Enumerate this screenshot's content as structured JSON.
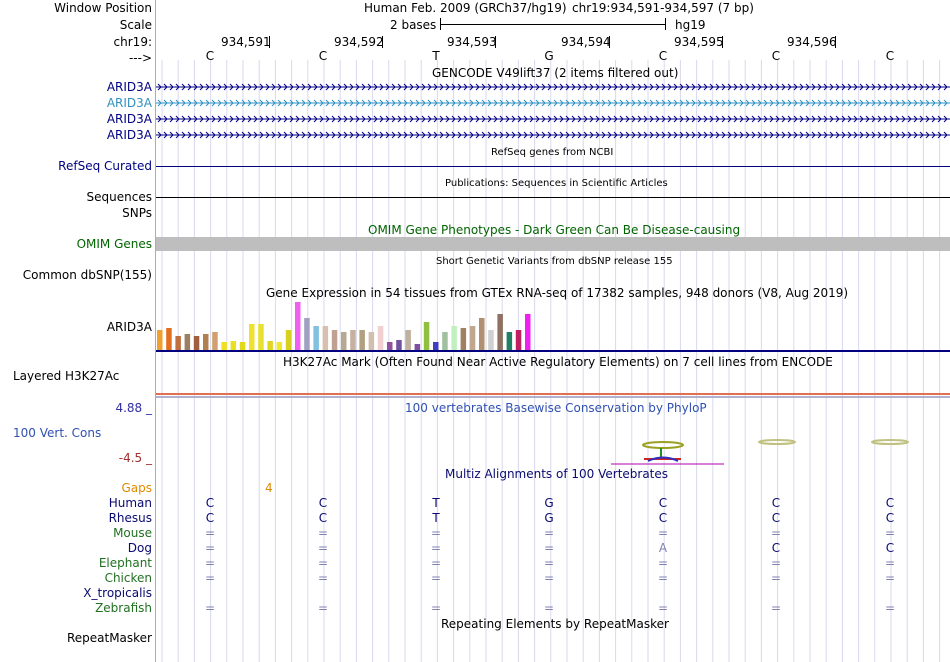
{
  "header": {
    "window_position_label": "Window Position",
    "scale_label": "Scale",
    "chrom_label": "chr19:",
    "direction_label": "--->",
    "assembly_title": "Human Feb. 2009 (GRCh37/hg19)",
    "position_text": "chr19:934,591-934,597 (7 bp)",
    "scale_text": "2 bases",
    "scale_db": "hg19",
    "ticks": [
      "934,591",
      "934,592",
      "934,593",
      "934,594",
      "934,595",
      "934,596"
    ],
    "bases": [
      "C",
      "C",
      "T",
      "G",
      "C",
      "C",
      "C"
    ]
  },
  "gencode": {
    "title": "GENCODE V49lift37 (2 items filtered out)",
    "genes": [
      "ARID3A",
      "ARID3A",
      "ARID3A",
      "ARID3A"
    ]
  },
  "refseq": {
    "subtitle": "RefSeq genes from NCBI",
    "label": "RefSeq Curated"
  },
  "publications": {
    "subtitle": "Publications: Sequences in Scientific Articles",
    "label": "Sequences"
  },
  "snps": {
    "label": "SNPs"
  },
  "omim": {
    "title": "OMIM Gene Phenotypes - Dark Green Can Be Disease-causing",
    "label": "OMIM Genes"
  },
  "dbsnp": {
    "subtitle": "Short Genetic Variants from dbSNP release 155",
    "label": "Common dbSNP(155)"
  },
  "gtex": {
    "title": "Gene Expression in 54 tissues from GTEx RNA-seq of 17382 samples, 948 donors (V8, Aug 2019)",
    "gene_label": "ARID3A"
  },
  "h3k27ac": {
    "title": "H3K27Ac Mark (Often Found Near Active Regulatory Elements) on 7 cell lines from ENCODE",
    "label": "Layered H3K27Ac"
  },
  "conservation": {
    "title": "100 vertebrates Basewise Conservation by PhyloP",
    "label": "100 Vert. Cons",
    "max_label": "4.88 _",
    "min_label": "-4.5 _"
  },
  "multiz": {
    "title": "Multiz Alignments of 100 Vertebrates",
    "gaps_label": "Gaps",
    "gaps_value": "4",
    "species": [
      {
        "name": "Human",
        "bases": [
          "C",
          "C",
          "T",
          "G",
          "C",
          "C",
          "C"
        ]
      },
      {
        "name": "Rhesus",
        "bases": [
          "C",
          "C",
          "T",
          "G",
          "C",
          "C",
          "C"
        ]
      },
      {
        "name": "Mouse",
        "bases": [
          "=",
          "=",
          "=",
          "=",
          "=",
          "=",
          "="
        ]
      },
      {
        "name": "Dog",
        "bases": [
          "=",
          "=",
          "=",
          "=",
          "A",
          "C",
          "C"
        ]
      },
      {
        "name": "Elephant",
        "bases": [
          "=",
          "=",
          "=",
          "=",
          "=",
          "=",
          "="
        ]
      },
      {
        "name": "Chicken",
        "bases": [
          "=",
          "=",
          "=",
          "=",
          "=",
          "=",
          "="
        ]
      },
      {
        "name": "X_tropicalis",
        "bases": [
          "",
          "",
          "",
          "",
          "",
          "",
          ""
        ]
      },
      {
        "name": "Zebrafish",
        "bases": [
          "=",
          "=",
          "=",
          "=",
          "=",
          "=",
          "="
        ]
      }
    ]
  },
  "repeatmasker": {
    "title": "Repeating Elements by RepeatMasker",
    "label": "RepeatMasker"
  },
  "colors": {
    "navy": "#000080",
    "blue_label": "#3050b0",
    "teal_label": "#3090c0",
    "omim_green": "#006400",
    "gaps_orange": "#e08a00",
    "cons_max": "#3030a0",
    "cons_min": "#a03030",
    "species_navy": "#0a0a70",
    "species_green": "#207020",
    "omim_bar": "#bebebe",
    "h3k_band": "#e07050"
  }
}
